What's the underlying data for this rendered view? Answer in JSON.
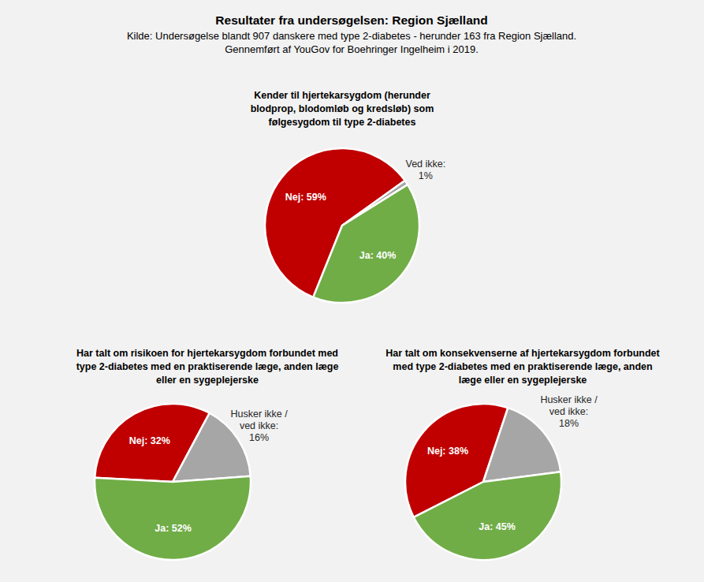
{
  "header": {
    "title": "Resultater fra undersøgelsen: Region Sjælland",
    "subtitle": [
      "Kilde: Undersøgelse blandt 907 danskere med type 2-diabetes - herunder 163 fra Region Sjælland.",
      "Gennemført af YouGov for Boehringer Ingelheim i 2019."
    ]
  },
  "chart_data": [
    {
      "type": "pie",
      "title": "Kender til hjertekarsygdom (herunder blodprop, blodomløb og kredsløb) som følgesygdom til type 2-diabetes",
      "values": [
        59,
        1,
        40
      ],
      "value_labels": [
        "Nej: 59%",
        "Ved ikke: 1%",
        "Ja: 40%"
      ],
      "colors": [
        "#c00000",
        "#a6a6a6",
        "#70ad47"
      ],
      "data_labels": true
    },
    {
      "type": "pie",
      "title": "Har talt om risikoen for hjertekarsygdom forbundet med type 2-diabetes med en praktiserende læge, anden læge eller en sygeplejerske",
      "values": [
        32,
        16,
        52
      ],
      "value_labels": [
        "Nej: 32%",
        "Husker ikke / ved ikke: 16%",
        "Ja: 52%"
      ],
      "colors": [
        "#c00000",
        "#a6a6a6",
        "#70ad47"
      ],
      "data_labels": true
    },
    {
      "type": "pie",
      "title": "Har talt om konsekvenserne af hjertekarsygdom forbundet med type 2-diabetes med en praktiserende læge, anden læge eller en sygeplejerske",
      "values": [
        38,
        18,
        45
      ],
      "value_labels": [
        "Nej: 38%",
        "Husker ikke / ved ikke: 18%",
        "Ja: 45%"
      ],
      "colors": [
        "#c00000",
        "#a6a6a6",
        "#70ad47"
      ],
      "data_labels": true
    }
  ]
}
